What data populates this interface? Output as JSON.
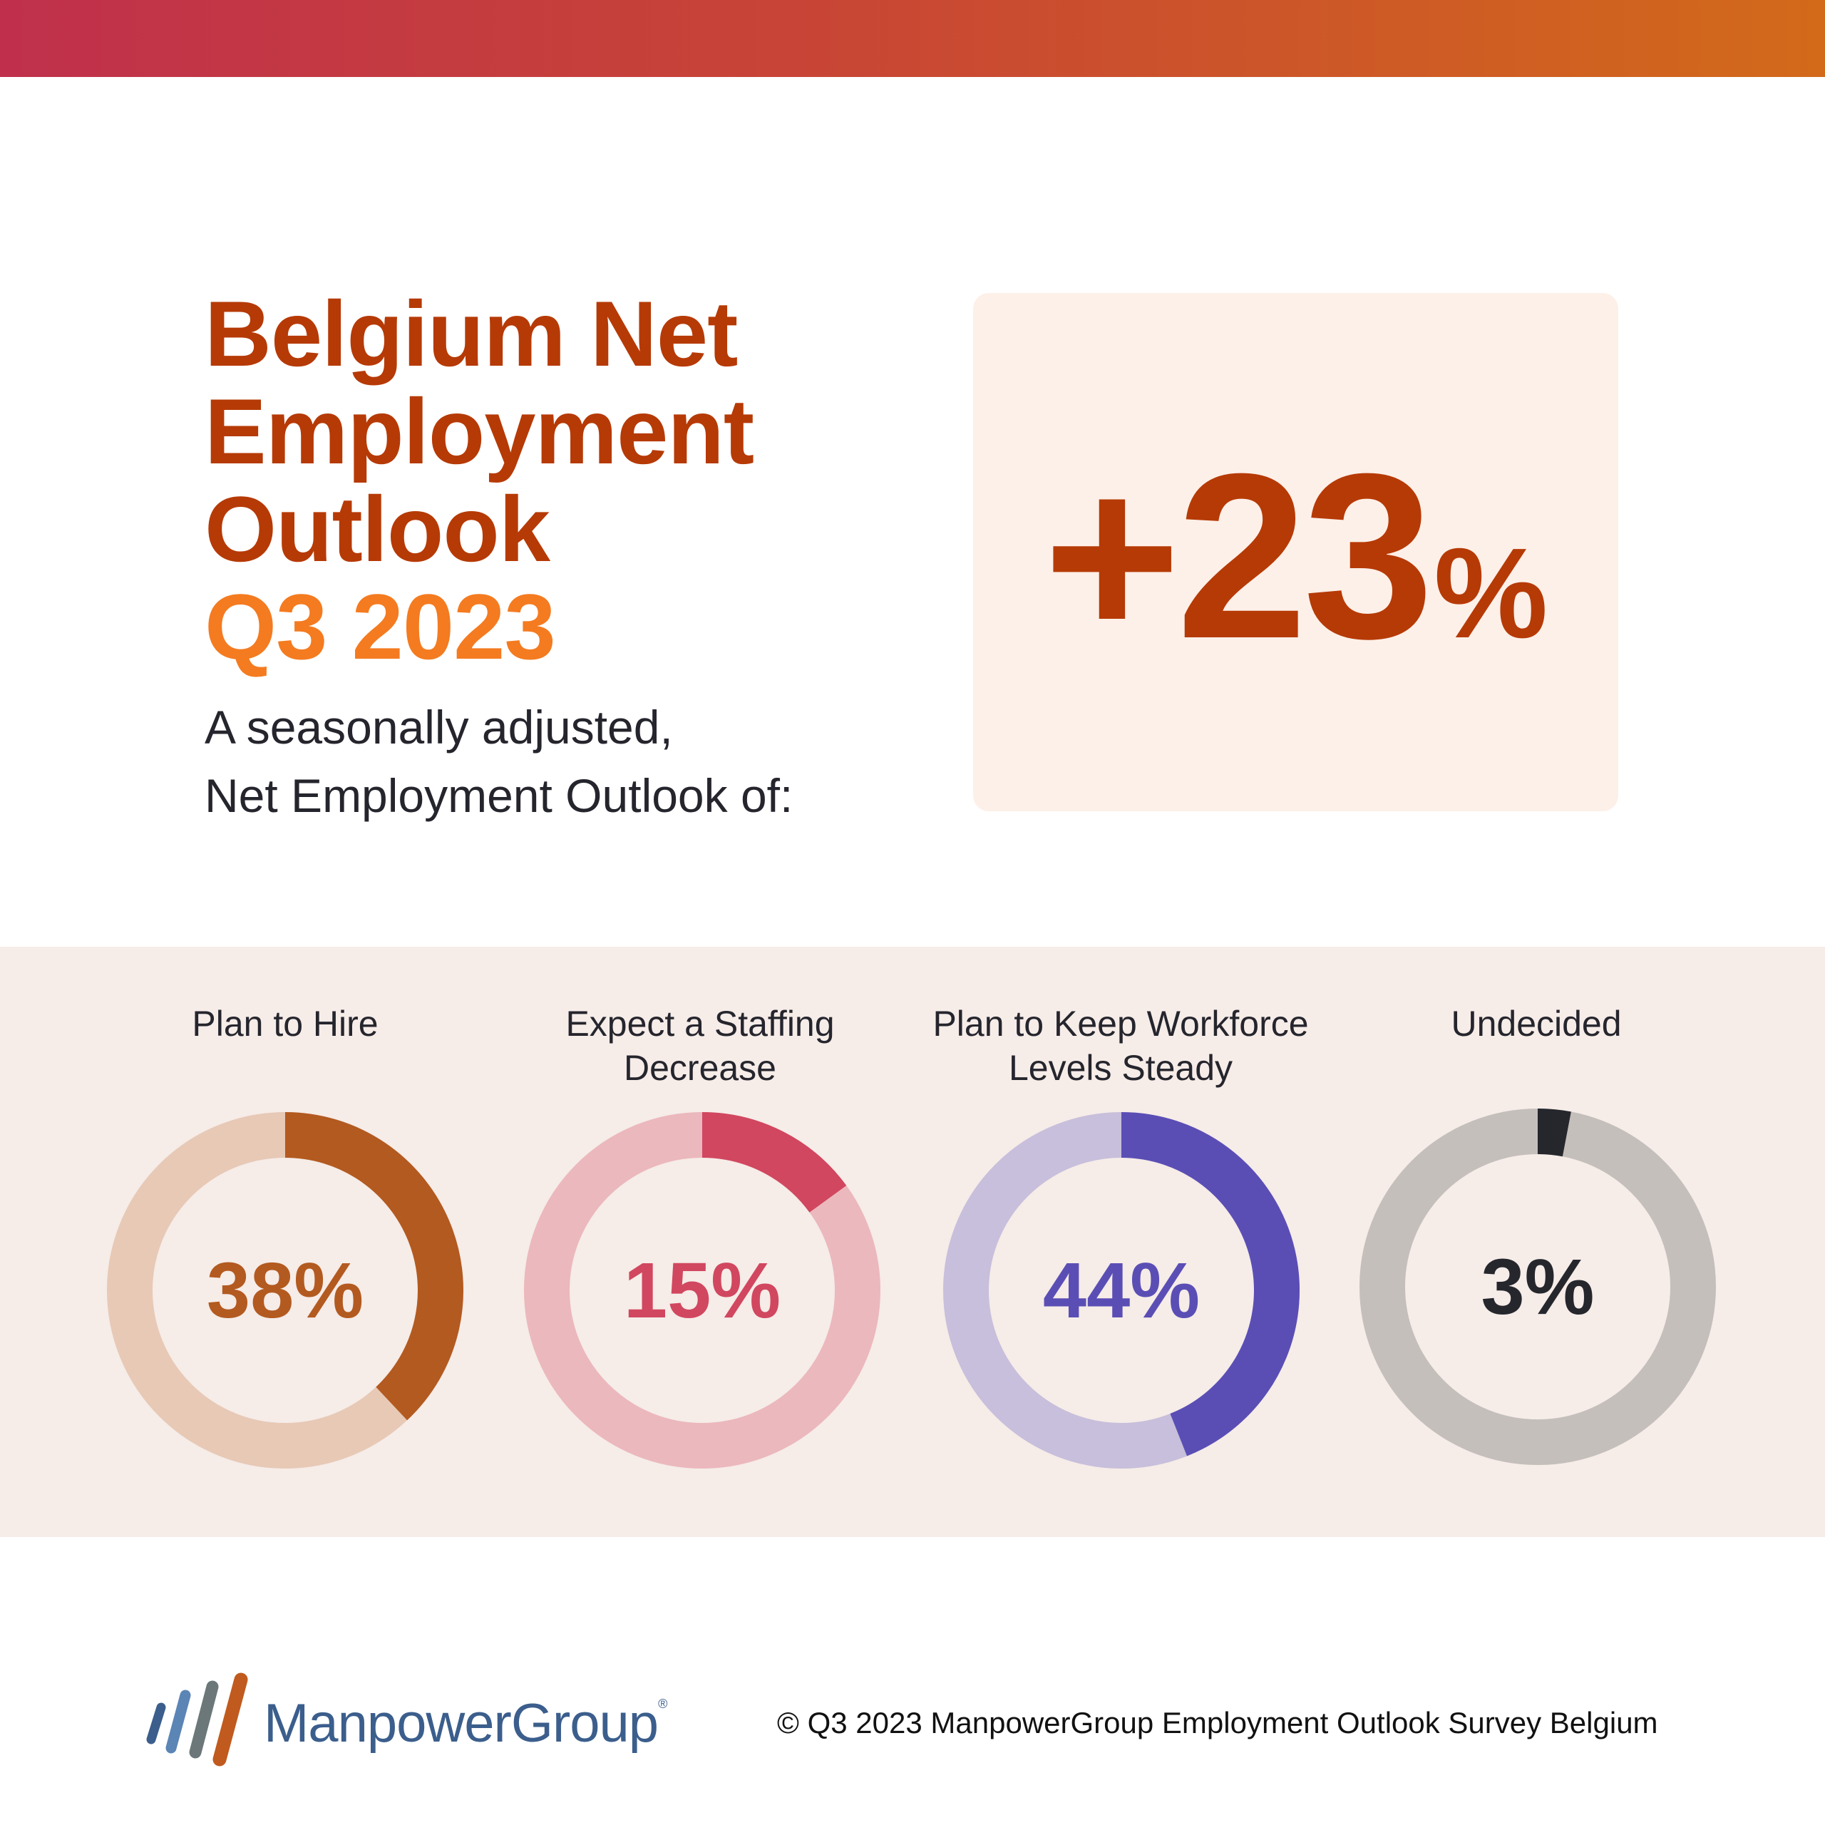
{
  "header": {
    "title_lines": [
      "Belgium Net",
      "Employment",
      "Outlook"
    ],
    "period": "Q3 2023",
    "subtitle_lines": [
      "A seasonally adjusted,",
      "Net Employment Outlook of:"
    ]
  },
  "headline": {
    "value": "+23",
    "unit": "%"
  },
  "chart_data": {
    "type": "pie",
    "variant": "donut",
    "categories": [
      "Plan to Hire",
      "Expect a Staffing Decrease",
      "Plan to Keep Workforce Levels Steady",
      "Undecided"
    ],
    "values": [
      38,
      15,
      44,
      3
    ],
    "unit": "%",
    "items": [
      {
        "label_lines": [
          "Plan to Hire"
        ],
        "value": 38,
        "display": "38%",
        "color": "#b35a20",
        "track_color": "#e7c9b6"
      },
      {
        "label_lines": [
          "Expect a Staffing",
          "Decrease"
        ],
        "value": 15,
        "display": "15%",
        "color": "#d1475f",
        "track_color": "#ebb8bd"
      },
      {
        "label_lines": [
          "Plan to Keep Workforce",
          "Levels Steady"
        ],
        "value": 44,
        "display": "44%",
        "color": "#5a4eb5",
        "track_color": "#c7bfdb"
      },
      {
        "label_lines": [
          "Undecided"
        ],
        "value": 3,
        "display": "3%",
        "color": "#25272d",
        "track_color": "#c4bfbb"
      }
    ]
  },
  "footer": {
    "brand": "ManpowerGroup",
    "registered": "®",
    "copyright": "© Q3 2023 ManpowerGroup Employment Outlook Survey Belgium"
  },
  "colors": {
    "title": "#b63a06",
    "period": "#f47b20",
    "band_background": "#f6ece8",
    "headline_background": "#fdf0e8"
  }
}
